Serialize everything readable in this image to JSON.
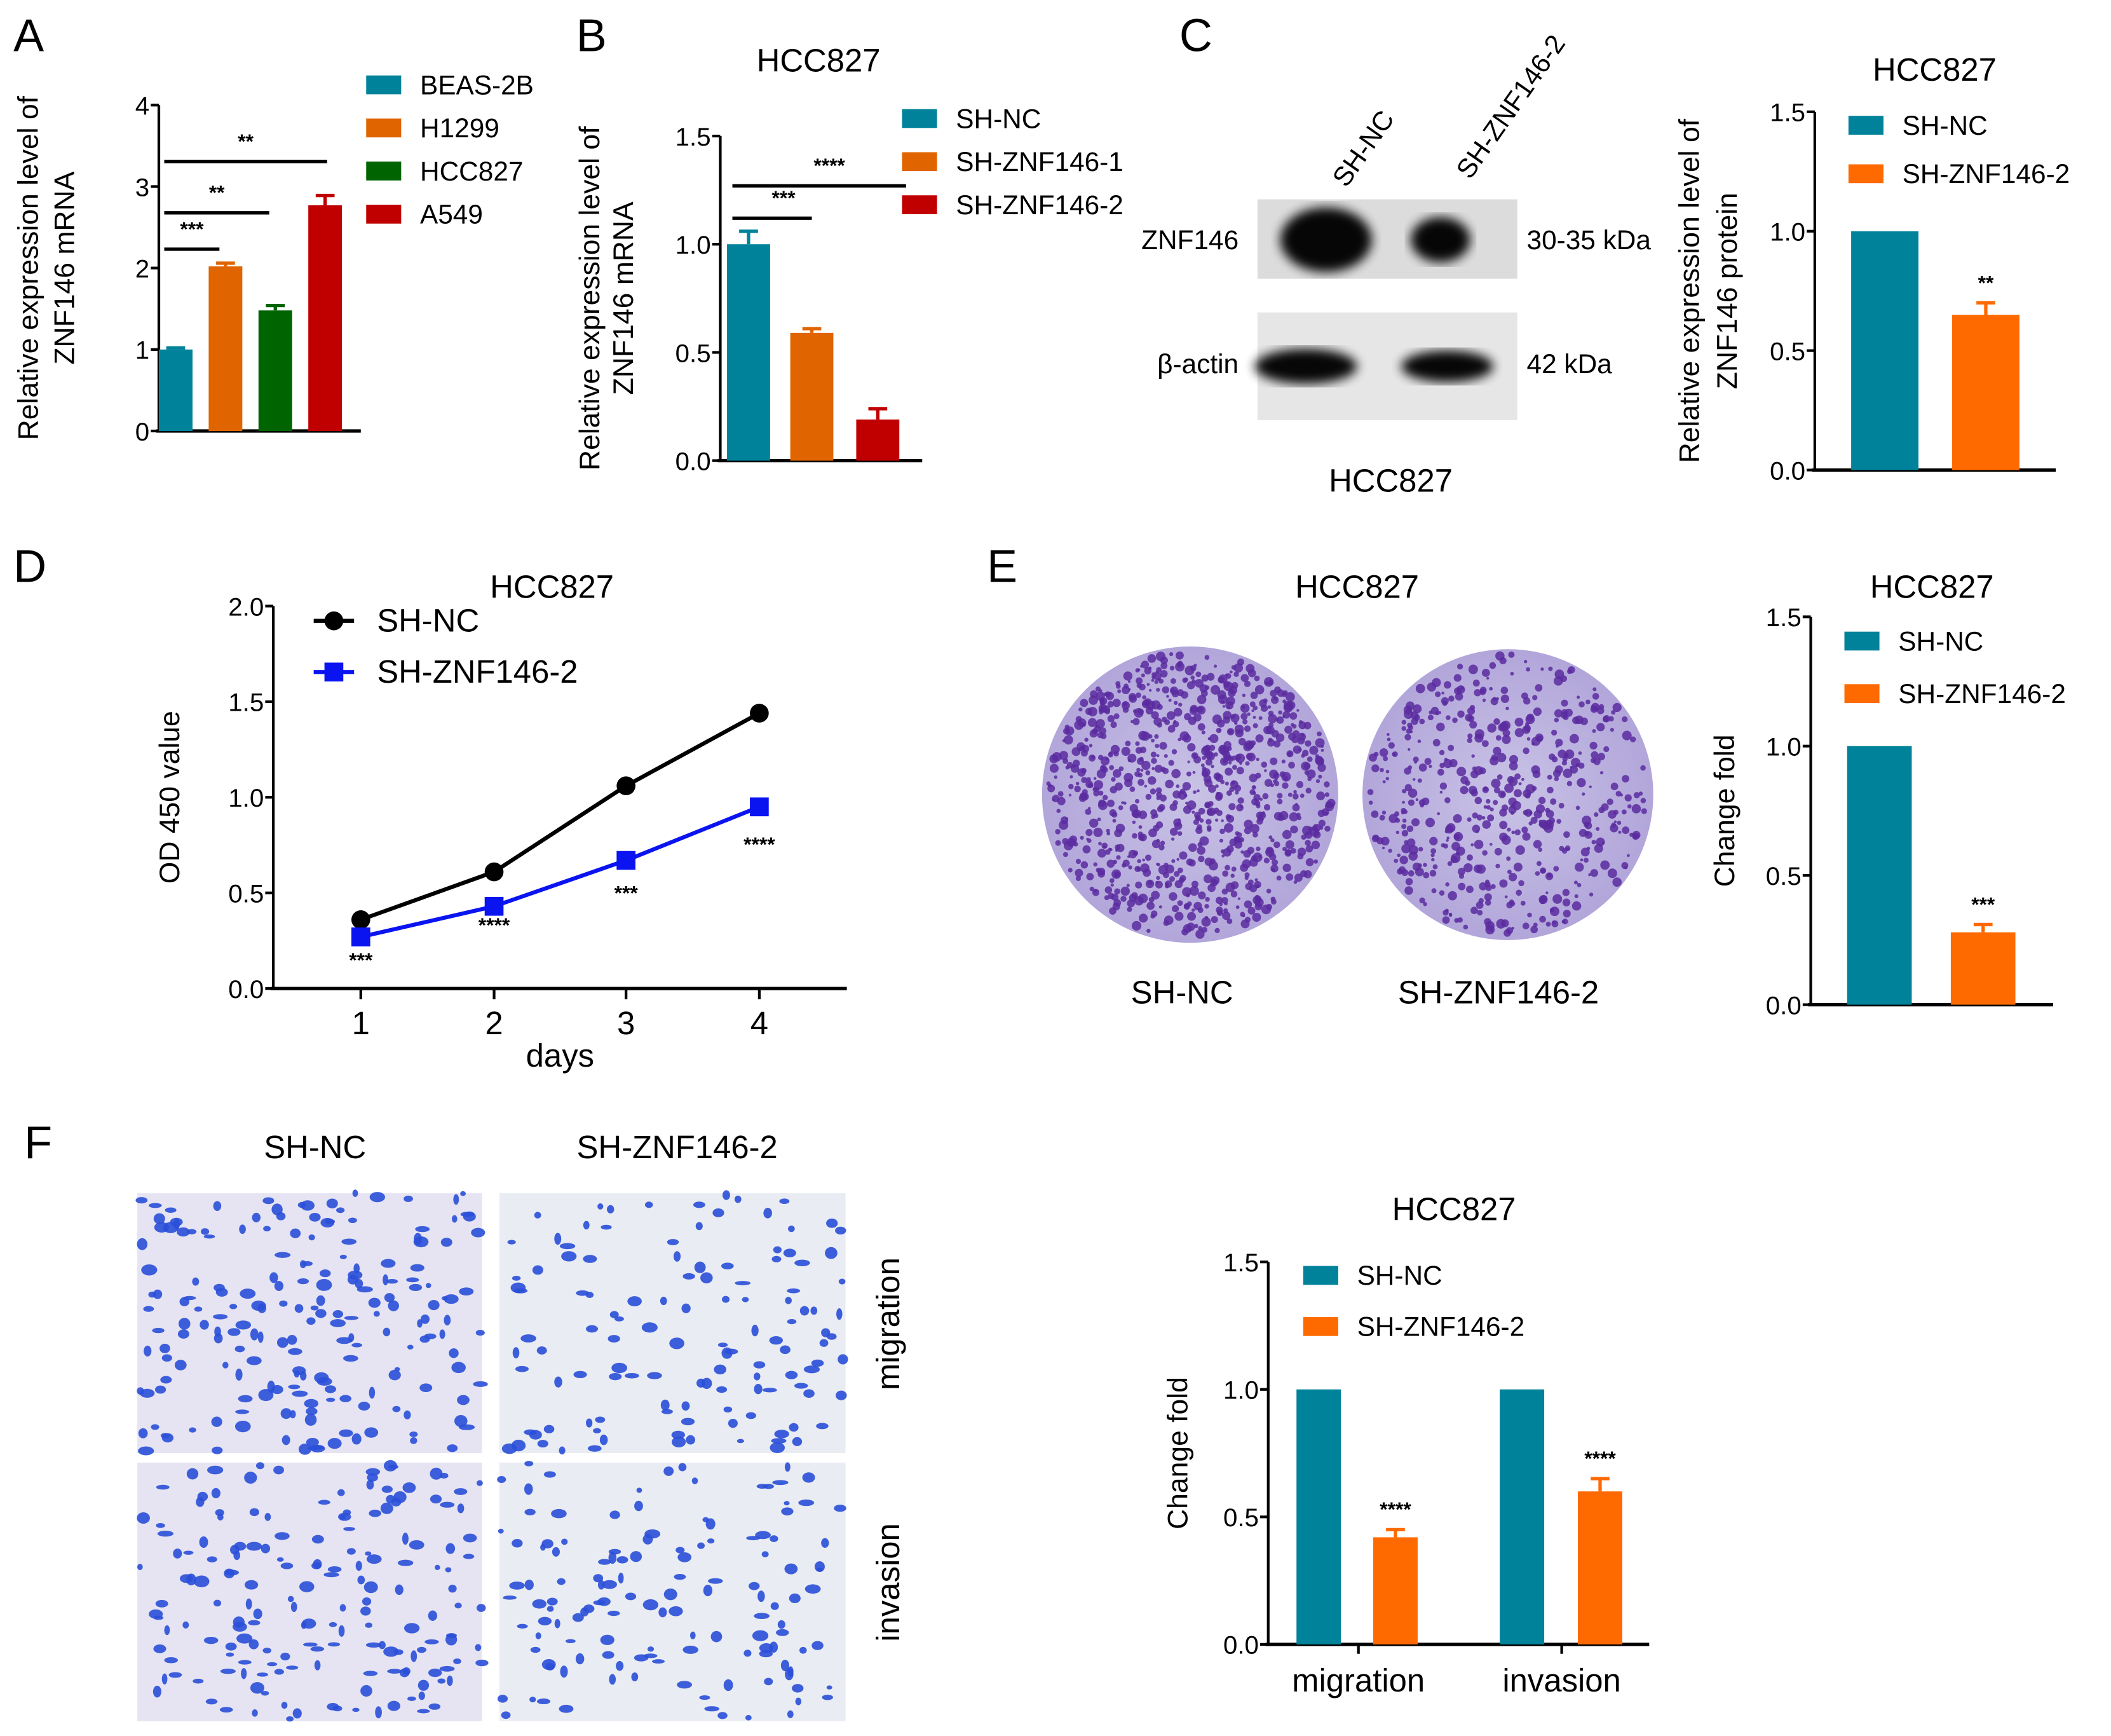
{
  "panels": {
    "A": "A",
    "B": "B",
    "C": "C",
    "D": "D",
    "E": "E",
    "F": "F"
  },
  "blot": {
    "lanes": [
      "SH-NC",
      "SH-ZNF146-2"
    ],
    "rows": [
      {
        "label": "ZNF146",
        "size": "30-35 kDa",
        "intensity": [
          1.0,
          0.65
        ]
      },
      {
        "label": "β-actin",
        "size": "42 kDa",
        "intensity": [
          1.0,
          0.9
        ]
      }
    ],
    "caption": "HCC827"
  },
  "colony": {
    "title": "HCC827",
    "labels": [
      "SH-NC",
      "SH-ZNF146-2"
    ],
    "plate_color": "#5a2ca0"
  },
  "transwell": {
    "columns": [
      "SH-NC",
      "SH-ZNF146-2"
    ],
    "rows": [
      "migration",
      "invasion"
    ],
    "cell_color": "#2a4fd8"
  },
  "chart_data": [
    {
      "id": "A",
      "type": "bar",
      "title": "",
      "ylabel": [
        "Relative  expression level of",
        "ZNF146 mRNA"
      ],
      "ylim": [
        0,
        4
      ],
      "yticks": [
        "0",
        "1",
        "2",
        "3",
        "4"
      ],
      "series": [
        {
          "name": "BEAS-2B",
          "value": 1.0,
          "error": 0.02,
          "color": "#00829a"
        },
        {
          "name": "H1299",
          "value": 2.02,
          "error": 0.04,
          "color": "#e06400"
        },
        {
          "name": "HCC827",
          "value": 1.48,
          "error": 0.06,
          "color": "#006400"
        },
        {
          "name": "A549",
          "value": 2.77,
          "error": 0.12,
          "color": "#c00000"
        }
      ],
      "significance": [
        {
          "from": "BEAS-2B",
          "to": "H1299",
          "label": "***"
        },
        {
          "from": "BEAS-2B",
          "to": "HCC827",
          "label": "**"
        },
        {
          "from": "BEAS-2B",
          "to": "A549",
          "label": "**"
        }
      ]
    },
    {
      "id": "B",
      "type": "bar",
      "title": "HCC827",
      "ylabel": [
        "Relative  expression level of",
        "ZNF146 mRNA"
      ],
      "ylim": [
        0,
        1.5
      ],
      "yticks": [
        "0.0",
        "0.5",
        "1.0",
        "1.5"
      ],
      "series": [
        {
          "name": "SH-NC",
          "value": 1.0,
          "error": 0.06,
          "color": "#00829a"
        },
        {
          "name": "SH-ZNF146-1",
          "value": 0.59,
          "error": 0.02,
          "color": "#e06400"
        },
        {
          "name": "SH-ZNF146-2",
          "value": 0.19,
          "error": 0.05,
          "color": "#c00000"
        }
      ],
      "significance": [
        {
          "from": "SH-NC",
          "to": "SH-ZNF146-1",
          "label": "***"
        },
        {
          "from": "SH-NC",
          "to": "SH-ZNF146-2",
          "label": "****"
        }
      ]
    },
    {
      "id": "C",
      "type": "bar",
      "title": "HCC827",
      "ylabel": [
        "Relative  expression level of",
        "ZNF146 protein"
      ],
      "ylim": [
        0,
        1.5
      ],
      "yticks": [
        "0.0",
        "0.5",
        "1.0",
        "1.5"
      ],
      "series": [
        {
          "name": "SH-NC",
          "value": 1.0,
          "error": 0,
          "color": "#00829a"
        },
        {
          "name": "SH-ZNF146-2",
          "value": 0.65,
          "error": 0.05,
          "color": "#ff6a00",
          "star": "**"
        }
      ]
    },
    {
      "id": "D",
      "type": "line",
      "title": "HCC827",
      "xlabel": "days",
      "ylabel": "OD 450 value",
      "x": [
        1,
        2,
        3,
        4
      ],
      "xticks": [
        "1",
        "2",
        "3",
        "4"
      ],
      "ylim": [
        0,
        2.0
      ],
      "yticks": [
        "0.0",
        "0.5",
        "1.0",
        "1.5",
        "2.0"
      ],
      "series": [
        {
          "name": "SH-NC",
          "values": [
            0.36,
            0.61,
            1.06,
            1.44
          ],
          "color": "#000000",
          "marker": "circle"
        },
        {
          "name": "SH-ZNF146-2",
          "values": [
            0.27,
            0.43,
            0.67,
            0.95
          ],
          "color": "#0a14f0",
          "marker": "square"
        }
      ],
      "stars": [
        "***",
        "****",
        "***",
        "****"
      ]
    },
    {
      "id": "E",
      "type": "bar",
      "title": "HCC827",
      "ylabel": [
        "Change fold"
      ],
      "ylim": [
        0,
        1.5
      ],
      "yticks": [
        "0.0",
        "0.5",
        "1.0",
        "1.5"
      ],
      "series": [
        {
          "name": "SH-NC",
          "value": 1.0,
          "error": 0,
          "color": "#00829a"
        },
        {
          "name": "SH-ZNF146-2",
          "value": 0.28,
          "error": 0.03,
          "color": "#ff6a00",
          "star": "***"
        }
      ]
    },
    {
      "id": "F",
      "type": "bar",
      "title": "HCC827",
      "ylabel": [
        "Change fold"
      ],
      "ylim": [
        0,
        1.5
      ],
      "yticks": [
        "0.0",
        "0.5",
        "1.0",
        "1.5"
      ],
      "categories": [
        "migration",
        "invasion"
      ],
      "series": [
        {
          "name": "SH-NC",
          "values": [
            1.0,
            1.0
          ],
          "errors": [
            0,
            0
          ],
          "color": "#00829a"
        },
        {
          "name": "SH-ZNF146-2",
          "values": [
            0.42,
            0.6
          ],
          "errors": [
            0.03,
            0.05
          ],
          "color": "#ff6a00",
          "stars": [
            "****",
            "****"
          ]
        }
      ]
    }
  ]
}
